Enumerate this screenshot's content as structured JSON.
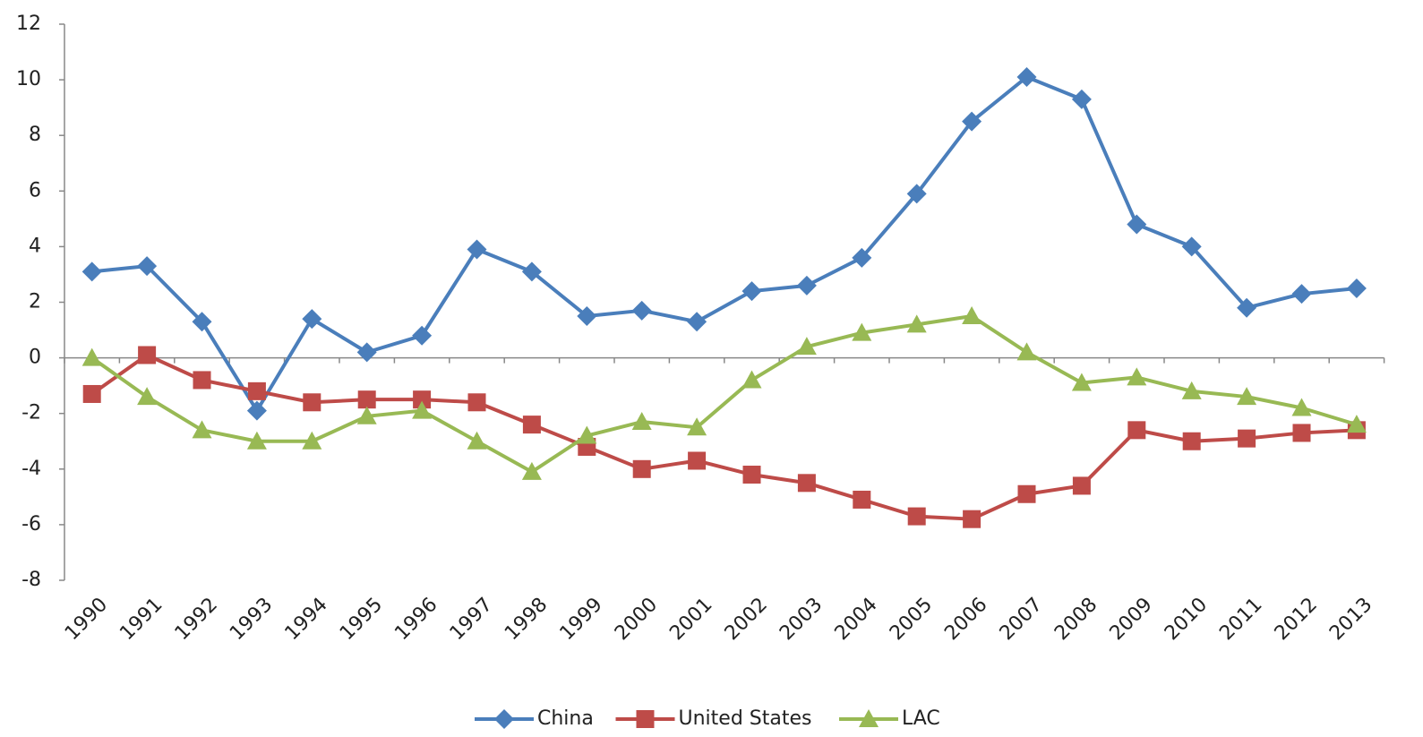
{
  "chart_data": {
    "type": "line",
    "categories": [
      "1990",
      "1991",
      "1992",
      "1993",
      "1994",
      "1995",
      "1996",
      "1997",
      "1998",
      "1999",
      "2000",
      "2001",
      "2002",
      "2003",
      "2004",
      "2005",
      "2006",
      "2007",
      "2008",
      "2009",
      "2010",
      "2011",
      "2012",
      "2013"
    ],
    "series": [
      {
        "name": "China",
        "color": "#4a7ebb",
        "marker": "diamond",
        "values": [
          3.1,
          3.3,
          1.3,
          -1.9,
          1.4,
          0.2,
          0.8,
          3.9,
          3.1,
          1.5,
          1.7,
          1.3,
          2.4,
          2.6,
          3.6,
          5.9,
          8.5,
          10.1,
          9.3,
          4.8,
          4.0,
          1.8,
          2.3,
          2.5
        ]
      },
      {
        "name": "United States",
        "color": "#be4b48",
        "marker": "square",
        "values": [
          -1.3,
          0.1,
          -0.8,
          -1.2,
          -1.6,
          -1.5,
          -1.5,
          -1.6,
          -2.4,
          -3.2,
          -4.0,
          -3.7,
          -4.2,
          -4.5,
          -5.1,
          -5.7,
          -5.8,
          -4.9,
          -4.6,
          -2.6,
          -3.0,
          -2.9,
          -2.7,
          -2.6
        ]
      },
      {
        "name": "LAC",
        "color": "#98b954",
        "marker": "triangle",
        "values": [
          0,
          -1.4,
          -2.6,
          -3.0,
          -3.0,
          -2.1,
          -1.9,
          -3.0,
          -4.1,
          -2.8,
          -2.3,
          -2.5,
          -0.8,
          0.4,
          0.9,
          1.2,
          1.5,
          0.2,
          -0.9,
          -0.7,
          -1.2,
          -1.4,
          -1.8,
          -2.4
        ]
      }
    ],
    "ylim": [
      -8,
      12
    ],
    "yticks": [
      -8,
      -6,
      -4,
      -2,
      0,
      2,
      4,
      6,
      8,
      10,
      12
    ],
    "grid": false,
    "legend": "bottom"
  }
}
